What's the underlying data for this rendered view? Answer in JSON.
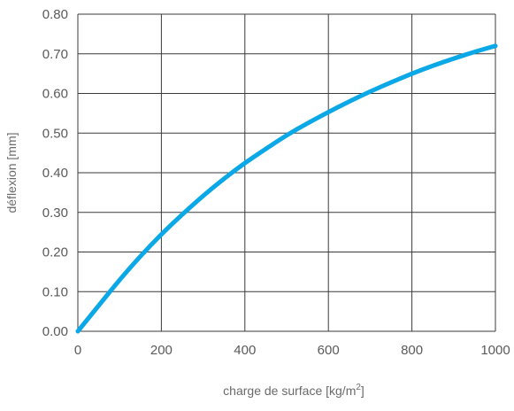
{
  "chart_data": {
    "type": "line",
    "xlabel": "charge de surface [kg/m",
    "xlabel_superscript": "2",
    "xlabel_suffix": "]",
    "ylabel": "déflexion [mm]",
    "xlim": [
      0,
      1000
    ],
    "ylim": [
      0,
      0.8
    ],
    "grid": true,
    "x_ticks": [
      0,
      200,
      400,
      600,
      800,
      1000
    ],
    "x_tick_labels": [
      "0",
      "200",
      "400",
      "600",
      "800",
      "1000"
    ],
    "y_ticks": [
      0,
      0.1,
      0.2,
      0.3,
      0.4,
      0.5,
      0.6,
      0.7,
      0.8
    ],
    "y_tick_labels": [
      "0.00",
      "0.10",
      "0.20",
      "0.30",
      "0.40",
      "0.50",
      "0.60",
      "0.70",
      "0.80"
    ],
    "series": [
      {
        "color": "#0aa8e6",
        "x": [
          0,
          50,
          100,
          150,
          200,
          250,
          300,
          350,
          400,
          450,
          500,
          550,
          600,
          650,
          700,
          750,
          800,
          850,
          900,
          950,
          1000
        ],
        "y": [
          0,
          0.065,
          0.13,
          0.19,
          0.245,
          0.295,
          0.342,
          0.385,
          0.425,
          0.46,
          0.495,
          0.525,
          0.553,
          0.58,
          0.605,
          0.628,
          0.65,
          0.67,
          0.688,
          0.705,
          0.72
        ]
      }
    ]
  },
  "colors": {
    "grid": "#3a3a3a",
    "line": "#0aa8e6",
    "text": "#5a5a5a"
  }
}
